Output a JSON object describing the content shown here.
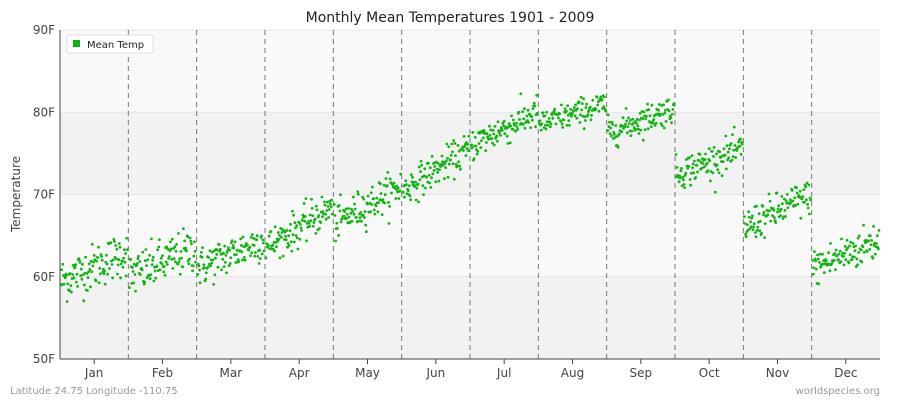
{
  "chart_data": {
    "type": "scatter",
    "title": "Monthly Mean Temperatures 1901 - 2009",
    "xlabel": "",
    "ylabel": "Temperature",
    "categories": [
      "Jan",
      "Feb",
      "Mar",
      "Apr",
      "May",
      "Jun",
      "Jul",
      "Aug",
      "Sep",
      "Oct",
      "Nov",
      "Dec"
    ],
    "ylim": [
      50,
      90
    ],
    "yticks": [
      "50F",
      "60F",
      "70F",
      "80F",
      "90F"
    ],
    "legend": {
      "position": "top-left",
      "label": "Mean Temp"
    },
    "series_color": "#11b511",
    "years": [
      1901,
      2009
    ],
    "monthly_ranges": [
      {
        "month": "Jan",
        "start_mean": 59.5,
        "end_mean": 63.0,
        "spread": 2.5,
        "min": 56.2,
        "max": 66.4
      },
      {
        "month": "Feb",
        "start_mean": 60.0,
        "end_mean": 63.5,
        "spread": 2.5,
        "min": 56.0,
        "max": 66.6
      },
      {
        "month": "Mar",
        "start_mean": 61.0,
        "end_mean": 64.5,
        "spread": 2.2,
        "min": 58.4,
        "max": 67.5
      },
      {
        "month": "Apr",
        "start_mean": 63.5,
        "end_mean": 68.5,
        "spread": 2.0,
        "min": 62.3,
        "max": 71.8
      },
      {
        "month": "May",
        "start_mean": 66.5,
        "end_mean": 71.0,
        "spread": 2.0,
        "min": 64.3,
        "max": 74.7
      },
      {
        "month": "Jun",
        "start_mean": 70.5,
        "end_mean": 75.5,
        "spread": 1.8,
        "min": 68.8,
        "max": 78.0
      },
      {
        "month": "Jul",
        "start_mean": 76.0,
        "end_mean": 80.0,
        "spread": 1.8,
        "min": 73.4,
        "max": 82.8
      },
      {
        "month": "Aug",
        "start_mean": 78.5,
        "end_mean": 81.0,
        "spread": 1.5,
        "min": 77.2,
        "max": 83.3
      },
      {
        "month": "Sep",
        "start_mean": 77.5,
        "end_mean": 80.5,
        "spread": 1.6,
        "min": 75.3,
        "max": 83.2
      },
      {
        "month": "Oct",
        "start_mean": 72.5,
        "end_mean": 75.5,
        "spread": 1.8,
        "min": 69.2,
        "max": 78.2
      },
      {
        "month": "Nov",
        "start_mean": 66.0,
        "end_mean": 70.0,
        "spread": 2.0,
        "min": 62.8,
        "max": 71.4
      },
      {
        "month": "Dec",
        "start_mean": 61.0,
        "end_mean": 64.5,
        "spread": 2.2,
        "min": 57.7,
        "max": 67.1
      }
    ]
  },
  "footer": {
    "left": "Latitude 24.75 Longitude -110.75",
    "right": "worldspecies.org"
  }
}
